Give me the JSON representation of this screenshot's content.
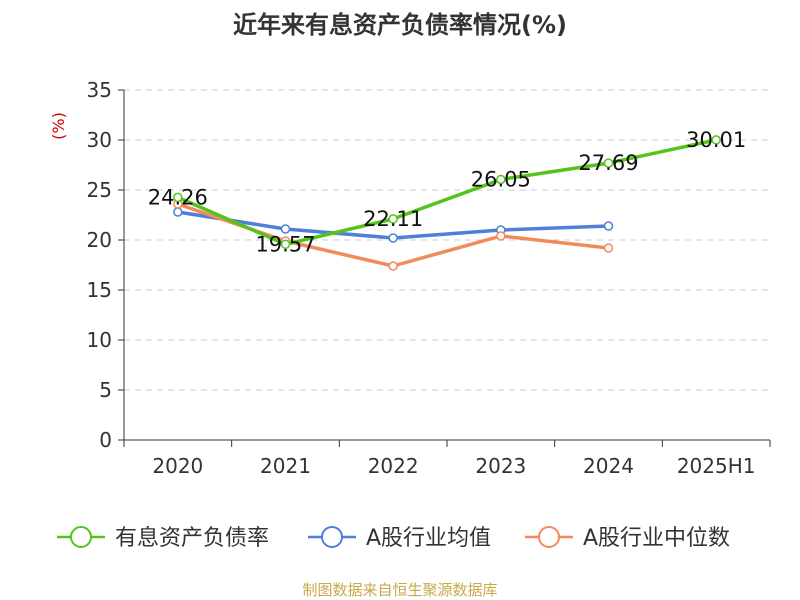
{
  "chart_data": {
    "type": "line",
    "title": "近年来有息资产负债率情况(%)",
    "ylabel": "(%)",
    "xlabel": "",
    "categories": [
      "2020",
      "2021",
      "2022",
      "2023",
      "2024",
      "2025H1"
    ],
    "ylim": [
      0,
      35
    ],
    "yticks": [
      0,
      5,
      10,
      15,
      20,
      25,
      30,
      35
    ],
    "grid": true,
    "legend_position": "bottom",
    "series": [
      {
        "name": "有息资产负债率",
        "color": "#52c41a",
        "values": [
          24.26,
          19.57,
          22.11,
          26.05,
          27.69,
          30.01
        ],
        "labels": [
          "24.26",
          "19.57",
          "22.11",
          "26.05",
          "27.69",
          "30.01"
        ],
        "show_labels": true
      },
      {
        "name": "A股行业均值",
        "color": "#4f7fd9",
        "values": [
          22.8,
          21.1,
          20.2,
          21.0,
          21.4,
          null
        ],
        "show_labels": false
      },
      {
        "name": "A股行业中位数",
        "color": "#f28b5c",
        "values": [
          23.6,
          19.9,
          17.4,
          20.4,
          19.2,
          null
        ],
        "show_labels": false
      }
    ],
    "source": "制图数据来自恒生聚源数据库",
    "colors": {
      "title": "#333333",
      "axis": "#333333",
      "grid": "#cccccc",
      "ylabel": "#cc0000",
      "source": "#c8a94a"
    }
  }
}
